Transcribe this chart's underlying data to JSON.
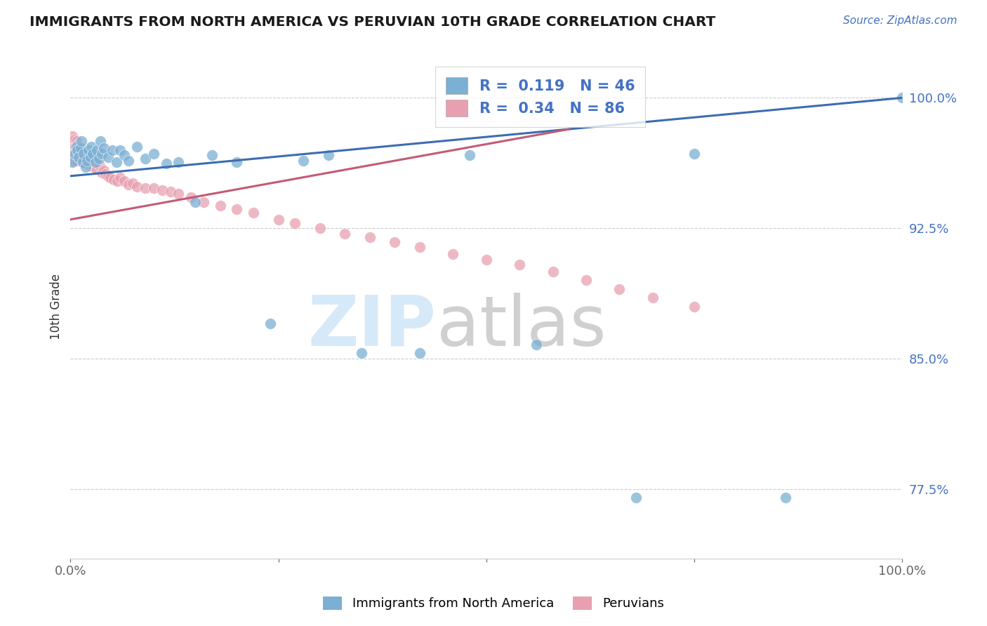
{
  "title": "IMMIGRANTS FROM NORTH AMERICA VS PERUVIAN 10TH GRADE CORRELATION CHART",
  "source": "Source: ZipAtlas.com",
  "ylabel": "10th Grade",
  "xlim": [
    0,
    1.0
  ],
  "ylim": [
    0.735,
    1.025
  ],
  "yticks": [
    0.775,
    0.85,
    0.925,
    1.0
  ],
  "ytick_labels": [
    "77.5%",
    "85.0%",
    "92.5%",
    "100.0%"
  ],
  "xticks": [
    0,
    0.25,
    0.5,
    0.75,
    1.0
  ],
  "xtick_labels": [
    "0.0%",
    "",
    "",
    "",
    "100.0%"
  ],
  "series1_label": "Immigrants from North America",
  "series1_color": "#7bafd4",
  "series1_R": 0.119,
  "series1_N": 46,
  "series2_label": "Peruvians",
  "series2_color": "#e8a0b0",
  "series2_R": 0.34,
  "series2_N": 86,
  "background_color": "#ffffff",
  "grid_color": "#cccccc",
  "line1_color": "#3c6db0",
  "line2_color": "#c45a74",
  "series1_x": [
    0.002,
    0.005,
    0.007,
    0.008,
    0.01,
    0.012,
    0.013,
    0.015,
    0.016,
    0.018,
    0.02,
    0.022,
    0.024,
    0.025,
    0.027,
    0.03,
    0.032,
    0.034,
    0.036,
    0.038,
    0.04,
    0.045,
    0.05,
    0.055,
    0.06,
    0.065,
    0.07,
    0.08,
    0.09,
    0.1,
    0.115,
    0.13,
    0.15,
    0.17,
    0.2,
    0.24,
    0.28,
    0.31,
    0.35,
    0.42,
    0.48,
    0.56,
    0.68,
    0.75,
    0.86,
    1.0
  ],
  "series1_y": [
    0.963,
    0.968,
    0.972,
    0.97,
    0.966,
    0.971,
    0.975,
    0.963,
    0.968,
    0.96,
    0.964,
    0.97,
    0.966,
    0.972,
    0.968,
    0.963,
    0.97,
    0.965,
    0.975,
    0.968,
    0.971,
    0.966,
    0.97,
    0.963,
    0.97,
    0.967,
    0.964,
    0.972,
    0.965,
    0.968,
    0.962,
    0.963,
    0.94,
    0.967,
    0.963,
    0.87,
    0.964,
    0.967,
    0.853,
    0.853,
    0.967,
    0.858,
    0.77,
    0.968,
    0.77,
    1.0
  ],
  "series2_x": [
    0.001,
    0.001,
    0.001,
    0.001,
    0.002,
    0.002,
    0.002,
    0.002,
    0.003,
    0.003,
    0.003,
    0.003,
    0.004,
    0.004,
    0.005,
    0.005,
    0.005,
    0.005,
    0.006,
    0.006,
    0.007,
    0.007,
    0.007,
    0.008,
    0.008,
    0.008,
    0.009,
    0.009,
    0.01,
    0.01,
    0.011,
    0.011,
    0.012,
    0.012,
    0.013,
    0.014,
    0.015,
    0.016,
    0.017,
    0.018,
    0.019,
    0.02,
    0.022,
    0.024,
    0.026,
    0.028,
    0.03,
    0.032,
    0.035,
    0.038,
    0.04,
    0.042,
    0.045,
    0.048,
    0.052,
    0.056,
    0.06,
    0.065,
    0.07,
    0.075,
    0.08,
    0.09,
    0.1,
    0.11,
    0.12,
    0.13,
    0.145,
    0.16,
    0.18,
    0.2,
    0.22,
    0.25,
    0.27,
    0.3,
    0.33,
    0.36,
    0.39,
    0.42,
    0.46,
    0.5,
    0.54,
    0.58,
    0.62,
    0.66,
    0.7,
    0.75
  ],
  "series2_y": [
    0.975,
    0.972,
    0.968,
    0.964,
    0.978,
    0.974,
    0.97,
    0.966,
    0.975,
    0.972,
    0.969,
    0.966,
    0.974,
    0.97,
    0.976,
    0.972,
    0.968,
    0.964,
    0.972,
    0.968,
    0.975,
    0.97,
    0.966,
    0.973,
    0.969,
    0.964,
    0.97,
    0.966,
    0.972,
    0.968,
    0.97,
    0.966,
    0.968,
    0.964,
    0.966,
    0.968,
    0.965,
    0.963,
    0.966,
    0.964,
    0.962,
    0.965,
    0.963,
    0.961,
    0.963,
    0.96,
    0.962,
    0.959,
    0.961,
    0.957,
    0.958,
    0.956,
    0.955,
    0.954,
    0.953,
    0.952,
    0.954,
    0.952,
    0.95,
    0.951,
    0.949,
    0.948,
    0.948,
    0.947,
    0.946,
    0.945,
    0.943,
    0.94,
    0.938,
    0.936,
    0.934,
    0.93,
    0.928,
    0.925,
    0.922,
    0.92,
    0.917,
    0.914,
    0.91,
    0.907,
    0.904,
    0.9,
    0.895,
    0.89,
    0.885,
    0.88
  ]
}
